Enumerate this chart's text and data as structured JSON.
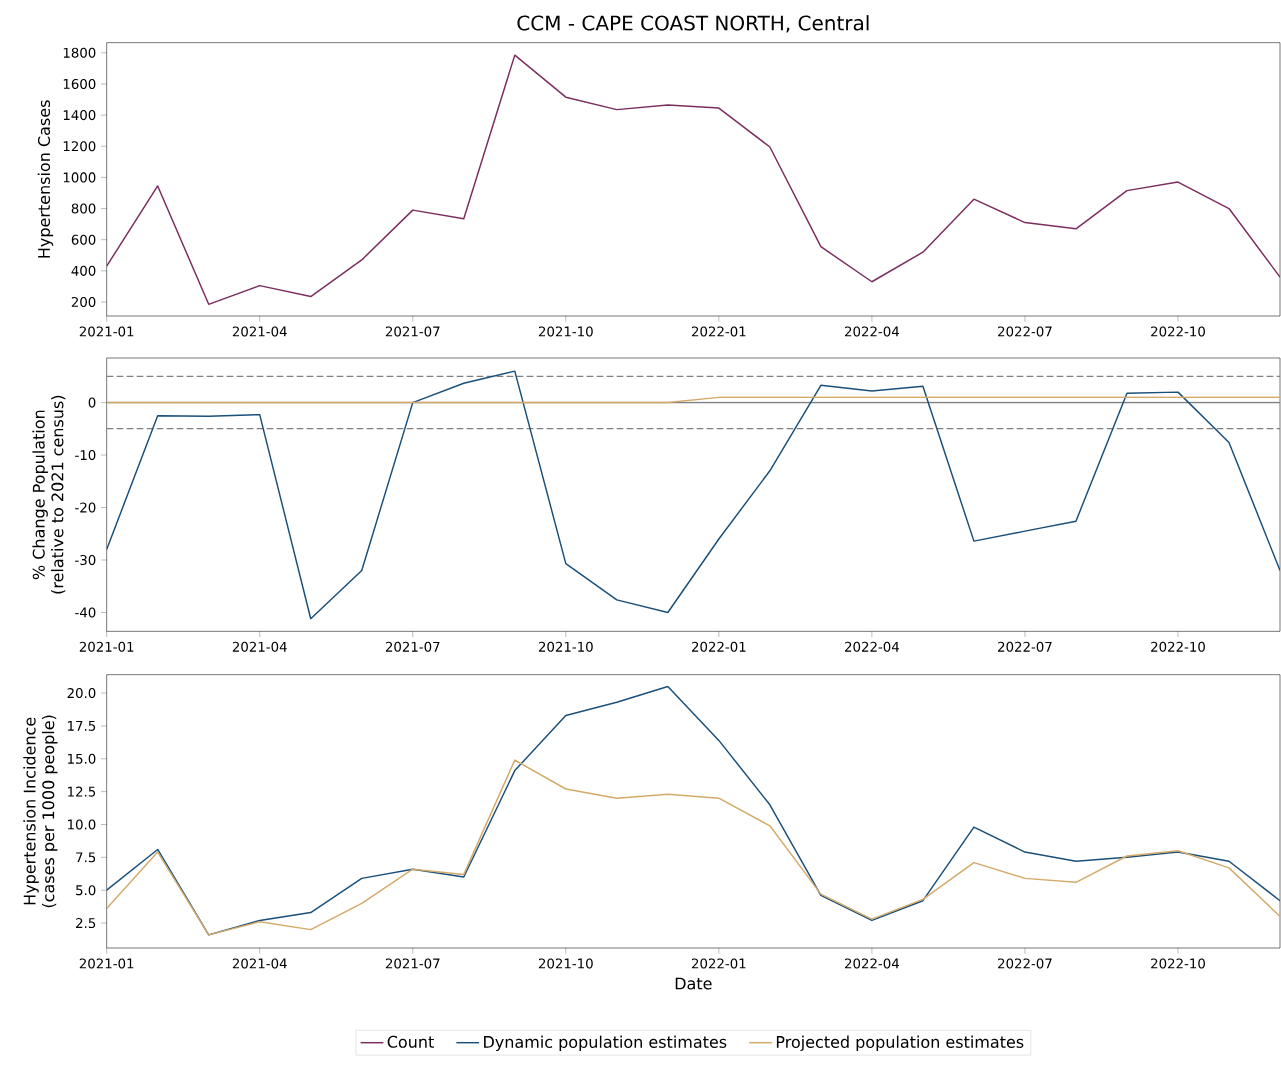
{
  "chart_data": [
    {
      "type": "line",
      "title": "CCM - CAPE COAST NORTH, Central",
      "ylabel": "Hypertension Cases",
      "x": [
        "2021-01",
        "2021-02",
        "2021-03",
        "2021-04",
        "2021-05",
        "2021-06",
        "2021-07",
        "2021-08",
        "2021-09",
        "2021-10",
        "2021-11",
        "2021-12",
        "2022-01",
        "2022-02",
        "2022-03",
        "2022-04",
        "2022-05",
        "2022-06",
        "2022-07",
        "2022-08",
        "2022-09",
        "2022-10",
        "2022-11",
        "2022-12"
      ],
      "series": [
        {
          "name": "Count",
          "color": "#7b2d5e",
          "values": [
            430,
            945,
            185,
            305,
            235,
            470,
            790,
            735,
            1785,
            1515,
            1435,
            1465,
            1445,
            1195,
            555,
            330,
            520,
            860,
            710,
            670,
            915,
            970,
            800,
            360
          ]
        }
      ],
      "xlim": [
        "2021-01",
        "2022-12"
      ],
      "xticks": [
        "2021-01",
        "2021-04",
        "2021-07",
        "2021-10",
        "2022-01",
        "2022-04",
        "2022-07",
        "2022-10"
      ],
      "ylim": [
        110,
        1865
      ],
      "yticks": [
        200,
        400,
        600,
        800,
        1000,
        1200,
        1400,
        1600,
        1800
      ],
      "grid": false
    },
    {
      "type": "line",
      "ylabel": "% Change Population\n(relative to 2021 census)",
      "x": [
        "2021-01",
        "2021-02",
        "2021-03",
        "2021-04",
        "2021-05",
        "2021-06",
        "2021-07",
        "2021-08",
        "2021-09",
        "2021-10",
        "2021-11",
        "2021-12",
        "2022-01",
        "2022-02",
        "2022-03",
        "2022-04",
        "2022-05",
        "2022-06",
        "2022-07",
        "2022-08",
        "2022-09",
        "2022-10",
        "2022-11",
        "2022-12"
      ],
      "series": [
        {
          "color": "#1a4f7a",
          "values": [
            -28,
            -2.5,
            -2.6,
            -2.3,
            -41.2,
            -32,
            0,
            3.7,
            6.0,
            -30.7,
            -37.6,
            -40,
            -26,
            -13,
            3.3,
            2.2,
            3.1,
            -26.4,
            -24.5,
            -22.6,
            1.8,
            2.0,
            -7.6,
            -32
          ]
        },
        {
          "color": "#d4aa6a",
          "values": [
            0,
            0,
            0,
            0,
            0,
            0,
            0,
            0,
            0,
            0,
            0,
            0,
            1,
            1,
            1,
            1,
            1,
            1,
            1,
            1,
            1,
            1,
            1,
            1
          ]
        }
      ],
      "ref_lines": [
        {
          "axis": "y",
          "value": 5,
          "color": "#808080",
          "line_style": "dashed"
        },
        {
          "axis": "y",
          "value": -5,
          "color": "#808080",
          "line_style": "dashed"
        },
        {
          "axis": "y",
          "value": 0,
          "color": "#808080",
          "line_style": "solid"
        }
      ],
      "xlim": [
        "2021-01",
        "2022-12"
      ],
      "xticks": [
        "2021-01",
        "2021-04",
        "2021-07",
        "2021-10",
        "2022-01",
        "2022-04",
        "2022-07",
        "2022-10"
      ],
      "ylim": [
        -43.6,
        8.5
      ],
      "yticks": [
        -40,
        -30,
        -20,
        -10,
        0
      ],
      "grid": false
    },
    {
      "type": "line",
      "ylabel": "Hypertension Incidence\n(cases per 1000 people)",
      "xlabel": "Date",
      "x": [
        "2021-01",
        "2021-02",
        "2021-03",
        "2021-04",
        "2021-05",
        "2021-06",
        "2021-07",
        "2021-08",
        "2021-09",
        "2021-10",
        "2021-11",
        "2021-12",
        "2022-01",
        "2022-02",
        "2022-03",
        "2022-04",
        "2022-05",
        "2022-06",
        "2022-07",
        "2022-08",
        "2022-09",
        "2022-10",
        "2022-11",
        "2022-12"
      ],
      "series": [
        {
          "name": "Dynamic population estimates",
          "color": "#1a4f7a",
          "values": [
            5.0,
            8.1,
            1.6,
            2.7,
            3.3,
            5.9,
            6.6,
            6.0,
            14.1,
            18.3,
            19.3,
            20.5,
            16.4,
            11.5,
            4.6,
            2.7,
            4.2,
            9.8,
            7.9,
            7.2,
            7.5,
            7.9,
            7.2,
            4.2
          ]
        },
        {
          "name": "Projected population estimates",
          "color": "#d4aa6a",
          "values": [
            3.6,
            7.9,
            1.6,
            2.6,
            2.0,
            4.0,
            6.6,
            6.2,
            14.9,
            12.7,
            12.0,
            12.3,
            12.0,
            9.9,
            4.7,
            2.8,
            4.3,
            7.1,
            5.9,
            5.6,
            7.6,
            8.0,
            6.7,
            3.0
          ]
        }
      ],
      "xlim": [
        "2021-01",
        "2022-12"
      ],
      "xticks": [
        "2021-01",
        "2021-04",
        "2021-07",
        "2021-10",
        "2022-01",
        "2022-04",
        "2022-07",
        "2022-10"
      ],
      "ylim": [
        0.6,
        21.4
      ],
      "yticks": [
        2.5,
        {
          "value": 5,
          "label": "5.0"
        },
        7.5,
        {
          "value": 10,
          "label": "10.0"
        },
        12.5,
        {
          "value": 15,
          "label": "15.0"
        },
        17.5,
        {
          "value": 20,
          "label": "20.0"
        }
      ],
      "grid": false,
      "legend": "bottom"
    }
  ]
}
